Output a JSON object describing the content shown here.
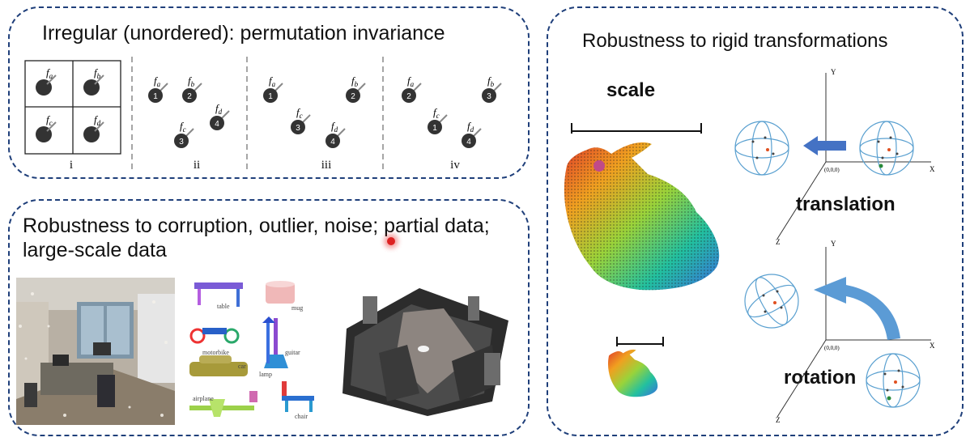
{
  "permutation": {
    "title": "Irregular (unordered): permutation invariance",
    "feature_labels": [
      "fa",
      "fb",
      "fc",
      "fd"
    ],
    "columns": [
      {
        "label": "i"
      },
      {
        "label": "ii",
        "order": [
          "1",
          "2",
          "3",
          "4"
        ]
      },
      {
        "label": "iii",
        "order": [
          "1",
          "2",
          "3",
          "4"
        ]
      },
      {
        "label": "iv",
        "order": [
          "2",
          "3",
          "1",
          "4"
        ]
      }
    ]
  },
  "corruption": {
    "title": "Robustness to corruption, outlier, noise; partial data; large-scale data",
    "shape_labels": [
      "table",
      "mug",
      "motorbike",
      "guitar",
      "car",
      "lamp",
      "airplane",
      "chair"
    ]
  },
  "rigid": {
    "title": "Robustness to rigid transformations",
    "scale_label": "scale",
    "translation_label": "translation",
    "rotation_label": "rotation",
    "axis_labels": {
      "y": "Y",
      "x": "X",
      "z": "Z",
      "origin": "(0,0,0)"
    }
  },
  "colors": {
    "panel_border": "#1f3f7a",
    "node": "#333333",
    "arrow": "#4472c4",
    "rotation_arrow": "#5b9bd5"
  }
}
